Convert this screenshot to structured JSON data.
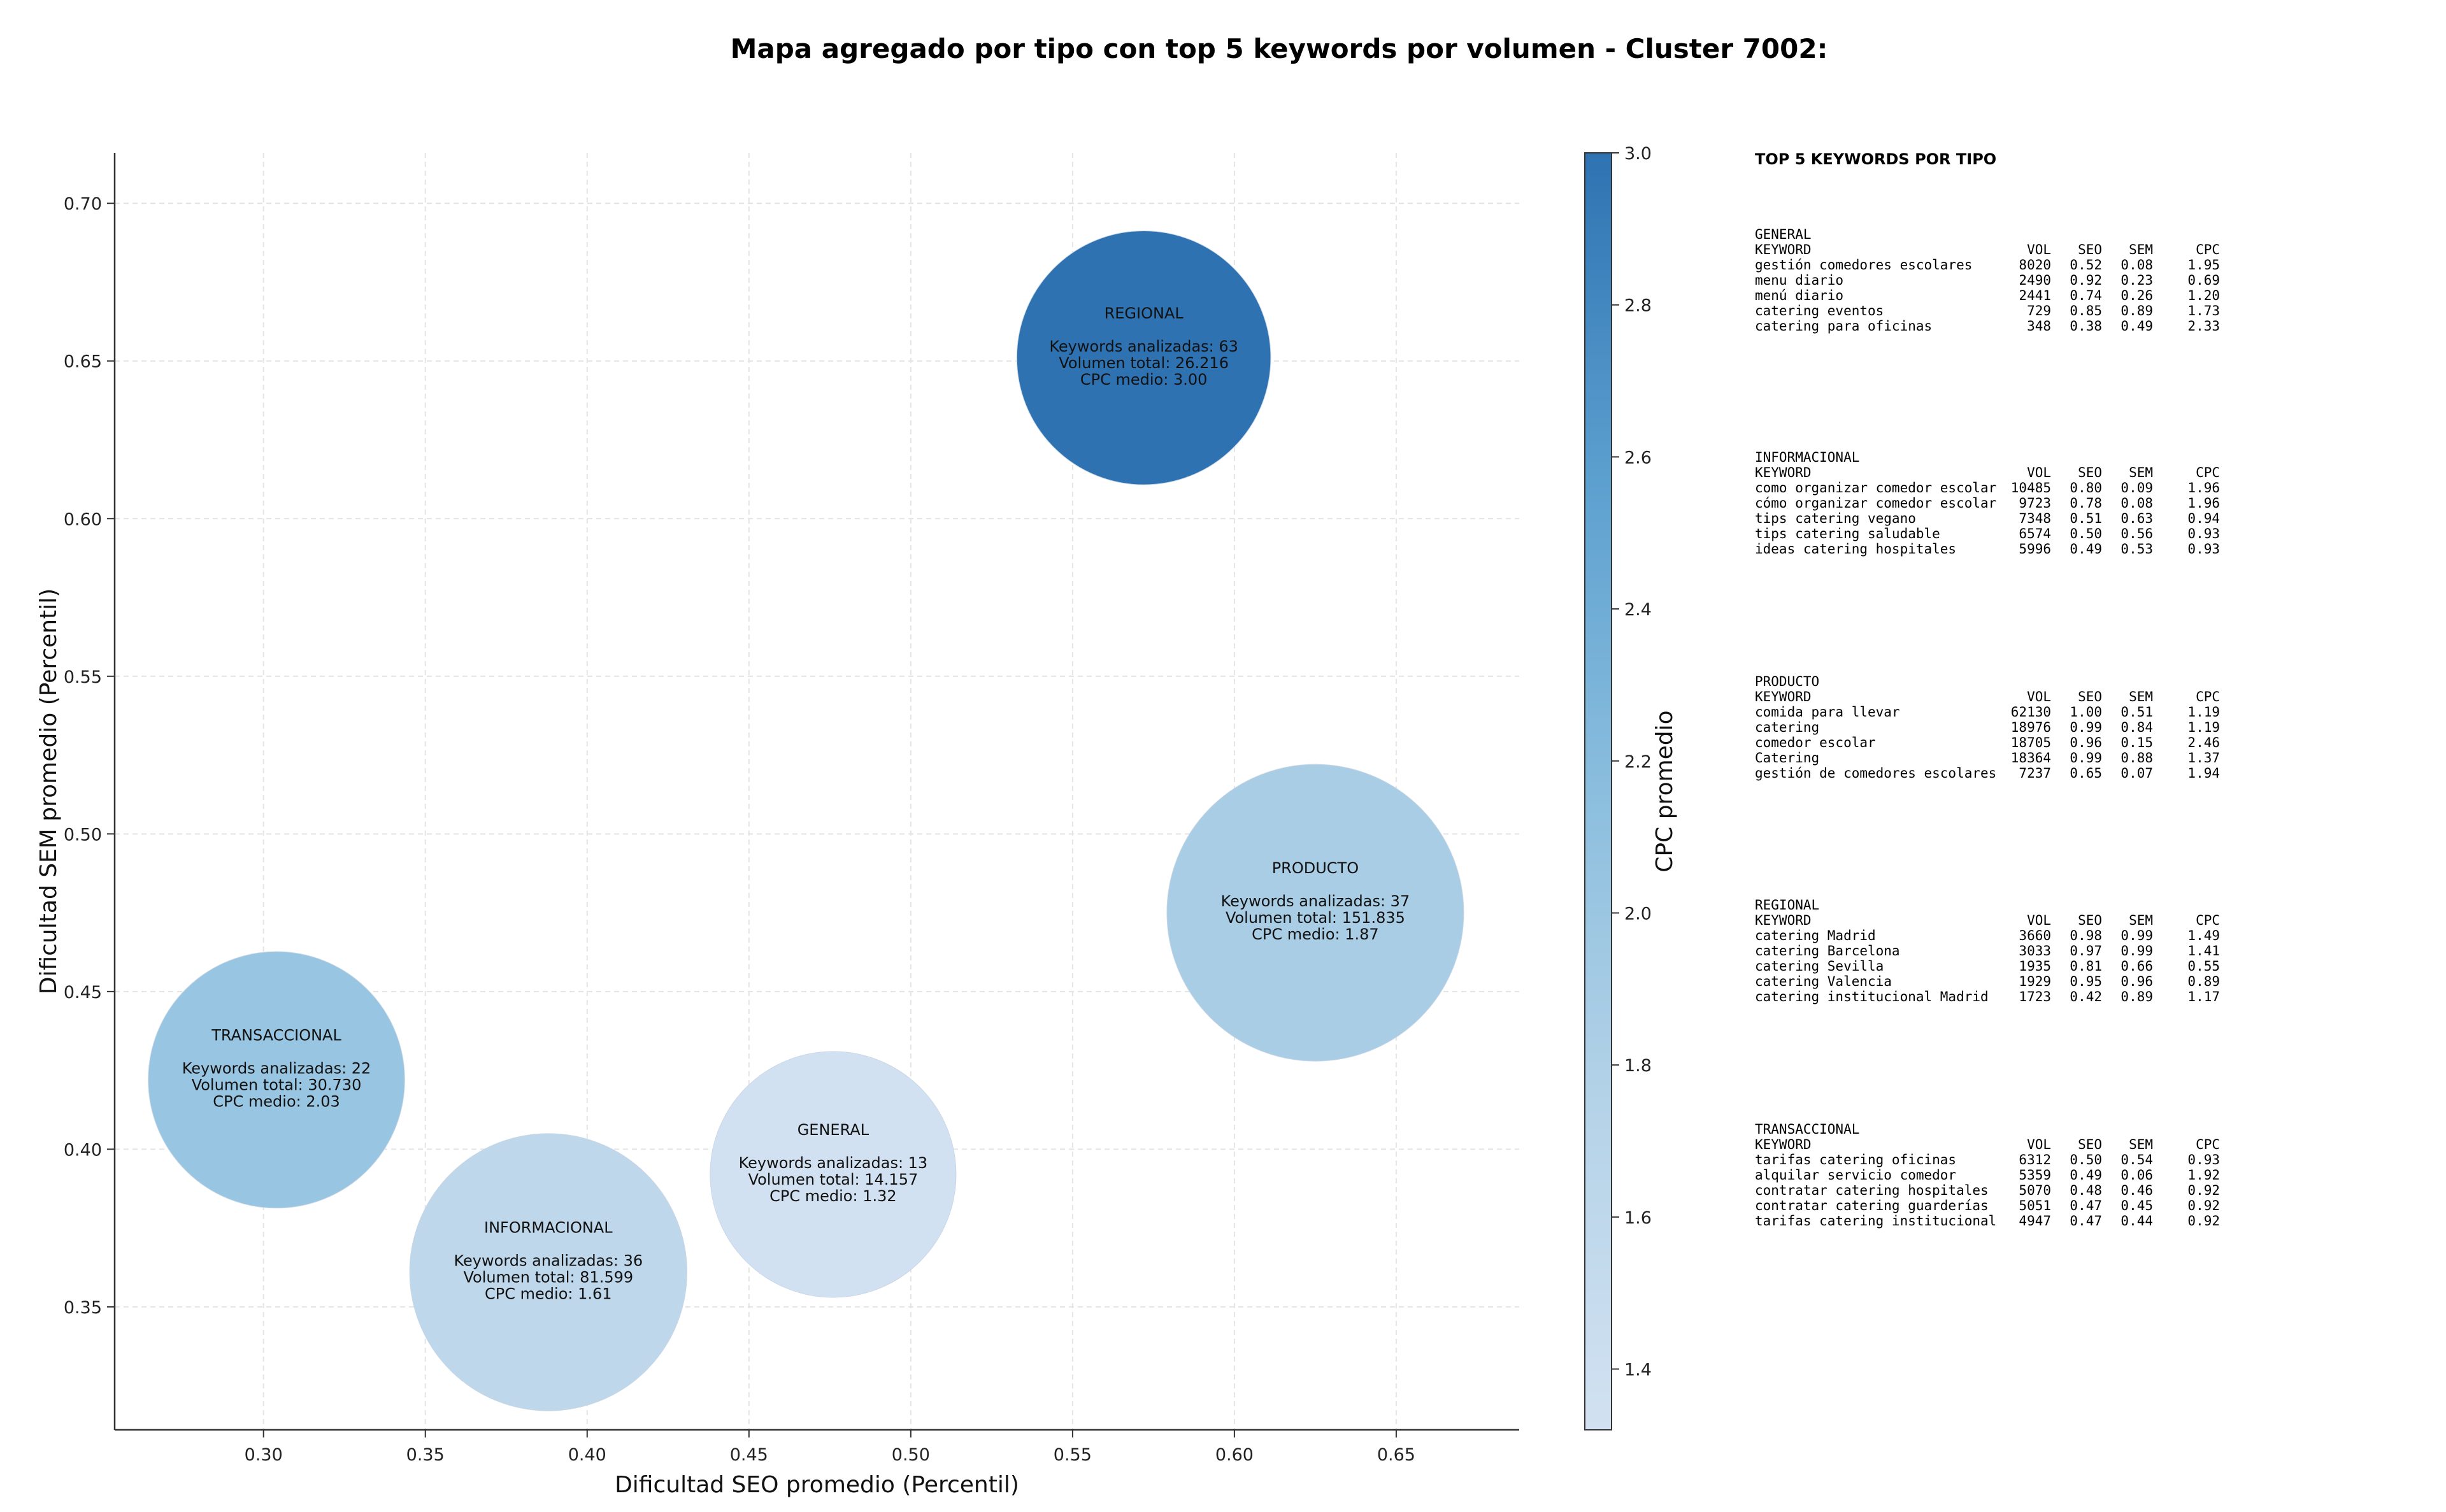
{
  "chart_data": {
    "type": "scatter",
    "title": "Mapa agregado por tipo con top 5 keywords por volumen - Cluster 7002:",
    "xlabel": "Dificultad SEO promedio (Percentil)",
    "ylabel": "Dificultad SEM promedio (Percentil)",
    "xlim": [
      0.254,
      0.688
    ],
    "ylim": [
      0.311,
      0.716
    ],
    "xticks": [
      "0.30",
      "0.35",
      "0.40",
      "0.45",
      "0.50",
      "0.55",
      "0.60",
      "0.65"
    ],
    "yticks": [
      "0.35",
      "0.40",
      "0.45",
      "0.50",
      "0.55",
      "0.60",
      "0.65",
      "0.70"
    ],
    "grid": true,
    "colorbar": {
      "label": "CPC promedio",
      "min": 1.32,
      "max": 3.0,
      "ticks": [
        "1.4",
        "1.6",
        "1.8",
        "2.0",
        "2.2",
        "2.4",
        "2.6",
        "2.8",
        "3.0"
      ]
    },
    "bubbles": [
      {
        "name": "REGIONAL",
        "x": 0.572,
        "y": 0.651,
        "keywords_label": "Keywords analizadas: 63",
        "volume_label": "Volumen total: 26.216",
        "cpc_label": "CPC medio: 3.00",
        "keywords": 63,
        "volume": 26216,
        "cpc": 3.0
      },
      {
        "name": "PRODUCTO",
        "x": 0.625,
        "y": 0.475,
        "keywords_label": "Keywords analizadas: 37",
        "volume_label": "Volumen total: 151.835",
        "cpc_label": "CPC medio: 1.87",
        "keywords": 37,
        "volume": 151835,
        "cpc": 1.87
      },
      {
        "name": "TRANSACCIONAL",
        "x": 0.304,
        "y": 0.422,
        "keywords_label": "Keywords analizadas: 22",
        "volume_label": "Volumen total: 30.730",
        "cpc_label": "CPC medio: 2.03",
        "keywords": 22,
        "volume": 30730,
        "cpc": 2.03
      },
      {
        "name": "INFORMACIONAL",
        "x": 0.388,
        "y": 0.361,
        "keywords_label": "Keywords analizadas: 36",
        "volume_label": "Volumen total: 81.599",
        "cpc_label": "CPC medio: 1.61",
        "keywords": 36,
        "volume": 81599,
        "cpc": 1.61
      },
      {
        "name": "GENERAL",
        "x": 0.476,
        "y": 0.392,
        "keywords_label": "Keywords analizadas: 13",
        "volume_label": "Volumen total: 14.157",
        "cpc_label": "CPC medio: 1.32",
        "keywords": 13,
        "volume": 14157,
        "cpc": 1.32
      }
    ]
  },
  "side_panel": {
    "heading": "TOP 5 KEYWORDS POR TIPO",
    "columns": [
      "KEYWORD",
      "VOL",
      "SEO",
      "SEM",
      "CPC"
    ],
    "blocks": [
      {
        "title": "GENERAL",
        "rows": [
          [
            "gestión comedores escolares",
            "8020",
            "0.52",
            "0.08",
            "1.95"
          ],
          [
            "menu diario",
            "2490",
            "0.92",
            "0.23",
            "0.69"
          ],
          [
            "menú diario",
            "2441",
            "0.74",
            "0.26",
            "1.20"
          ],
          [
            "catering eventos",
            "729",
            "0.85",
            "0.89",
            "1.73"
          ],
          [
            "catering para oficinas",
            "348",
            "0.38",
            "0.49",
            "2.33"
          ]
        ]
      },
      {
        "title": "INFORMACIONAL",
        "rows": [
          [
            "como organizar comedor escolar",
            "10485",
            "0.80",
            "0.09",
            "1.96"
          ],
          [
            "cómo organizar comedor escolar",
            "9723",
            "0.78",
            "0.08",
            "1.96"
          ],
          [
            "tips catering vegano",
            "7348",
            "0.51",
            "0.63",
            "0.94"
          ],
          [
            "tips catering saludable",
            "6574",
            "0.50",
            "0.56",
            "0.93"
          ],
          [
            "ideas catering hospitales",
            "5996",
            "0.49",
            "0.53",
            "0.93"
          ]
        ]
      },
      {
        "title": "PRODUCTO",
        "rows": [
          [
            "comida para llevar",
            "62130",
            "1.00",
            "0.51",
            "1.19"
          ],
          [
            "catering",
            "18976",
            "0.99",
            "0.84",
            "1.19"
          ],
          [
            "comedor escolar",
            "18705",
            "0.96",
            "0.15",
            "2.46"
          ],
          [
            "Catering",
            "18364",
            "0.99",
            "0.88",
            "1.37"
          ],
          [
            "gestión de comedores escolares",
            "7237",
            "0.65",
            "0.07",
            "1.94"
          ]
        ]
      },
      {
        "title": "REGIONAL",
        "rows": [
          [
            "catering Madrid",
            "3660",
            "0.98",
            "0.99",
            "1.49"
          ],
          [
            "catering Barcelona",
            "3033",
            "0.97",
            "0.99",
            "1.41"
          ],
          [
            "catering Sevilla",
            "1935",
            "0.81",
            "0.66",
            "0.55"
          ],
          [
            "catering Valencia",
            "1929",
            "0.95",
            "0.96",
            "0.89"
          ],
          [
            "catering institucional Madrid",
            "1723",
            "0.42",
            "0.89",
            "1.17"
          ]
        ]
      },
      {
        "title": "TRANSACCIONAL",
        "rows": [
          [
            "tarifas catering oficinas",
            "6312",
            "0.50",
            "0.54",
            "0.93"
          ],
          [
            "alquilar servicio comedor",
            "5359",
            "0.49",
            "0.06",
            "1.92"
          ],
          [
            "contratar catering hospitales",
            "5070",
            "0.48",
            "0.46",
            "0.92"
          ],
          [
            "contratar catering guarderías",
            "5051",
            "0.47",
            "0.45",
            "0.92"
          ],
          [
            "tarifas catering institucional",
            "4947",
            "0.47",
            "0.44",
            "0.92"
          ]
        ]
      }
    ]
  }
}
